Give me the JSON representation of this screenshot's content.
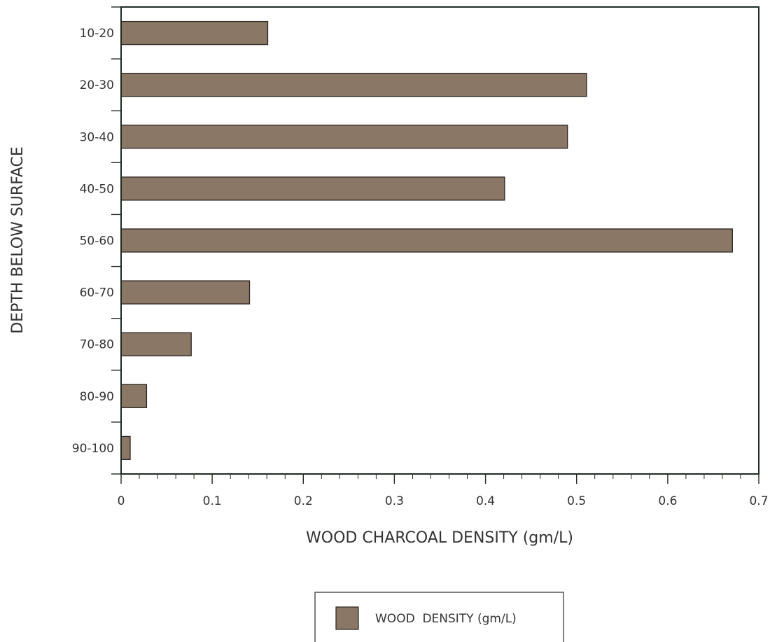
{
  "chart_data": {
    "type": "bar",
    "orientation": "horizontal",
    "categories": [
      "10-20",
      "20-30",
      "30-40",
      "40-50",
      "50-60",
      "60-70",
      "70-80",
      "80-90",
      "90-100"
    ],
    "series": [
      {
        "name": "WOOD  DENSITY (gm/L)",
        "values": [
          0.161,
          0.511,
          0.49,
          0.421,
          0.671,
          0.141,
          0.077,
          0.028,
          0.01
        ]
      }
    ],
    "xlabel": "WOOD CHARCOAL DENSITY (gm/L)",
    "ylabel": "DEPTH BELOW SURFACE",
    "xlim": [
      0,
      0.7
    ],
    "xticks": [
      "0",
      "0.1",
      "0.2",
      "0.3",
      "0.4",
      "0.5",
      "0.6",
      "0.7"
    ],
    "grid": false,
    "legend_position": "bottom-center",
    "colors": {
      "bar_fill": "#8a7766",
      "bar_stroke": "#2b2420",
      "axis": "#1e2a22",
      "text": "#333333"
    }
  }
}
